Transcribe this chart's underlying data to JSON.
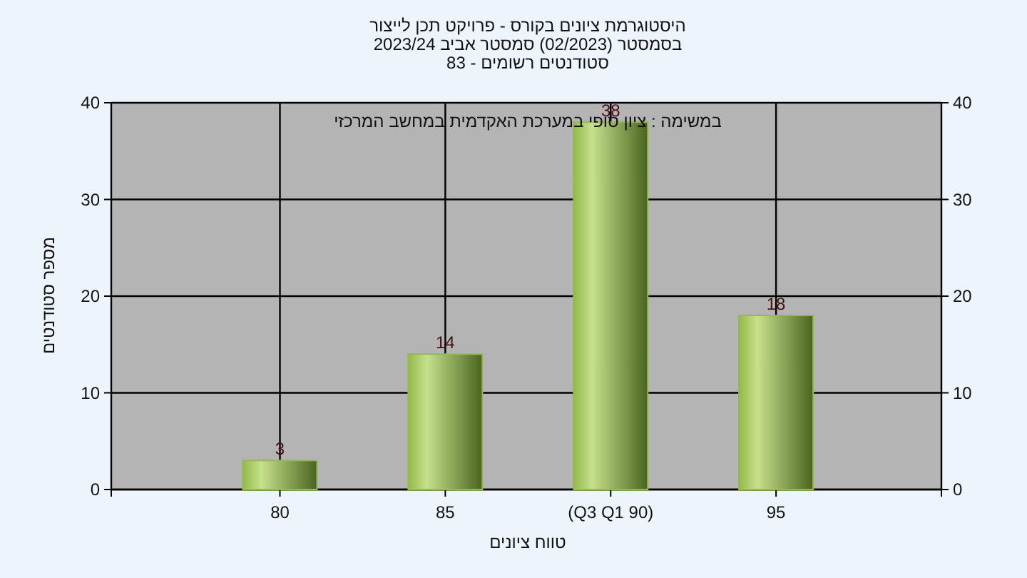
{
  "chart_data": {
    "type": "bar",
    "title": "היסטוגרמת ציונים בקורס - פרויקט תכן לייצור",
    "subtitle": "בסמסטר (02/2023) סמסטר אביב 2023/24",
    "annotations": [
      "סטודנטים רשומים - 83",
      "במשימה : ציון סופי במערכת האקדמית במחשב המרכזי"
    ],
    "xlabel": "טווח ציונים",
    "ylabel": "מספר סטודנטים",
    "categories": [
      "80",
      "85",
      "(Q3 Q1 90)",
      "95"
    ],
    "values": [
      3,
      14,
      38,
      18
    ],
    "color": "#94b94c",
    "ylim": [
      0,
      40
    ],
    "yticks": [
      0,
      10,
      20,
      30,
      40
    ],
    "y2lim": [
      0,
      40
    ],
    "y2ticks": [
      0,
      10,
      20,
      30,
      40
    ],
    "grid": true,
    "data_labels": true
  }
}
